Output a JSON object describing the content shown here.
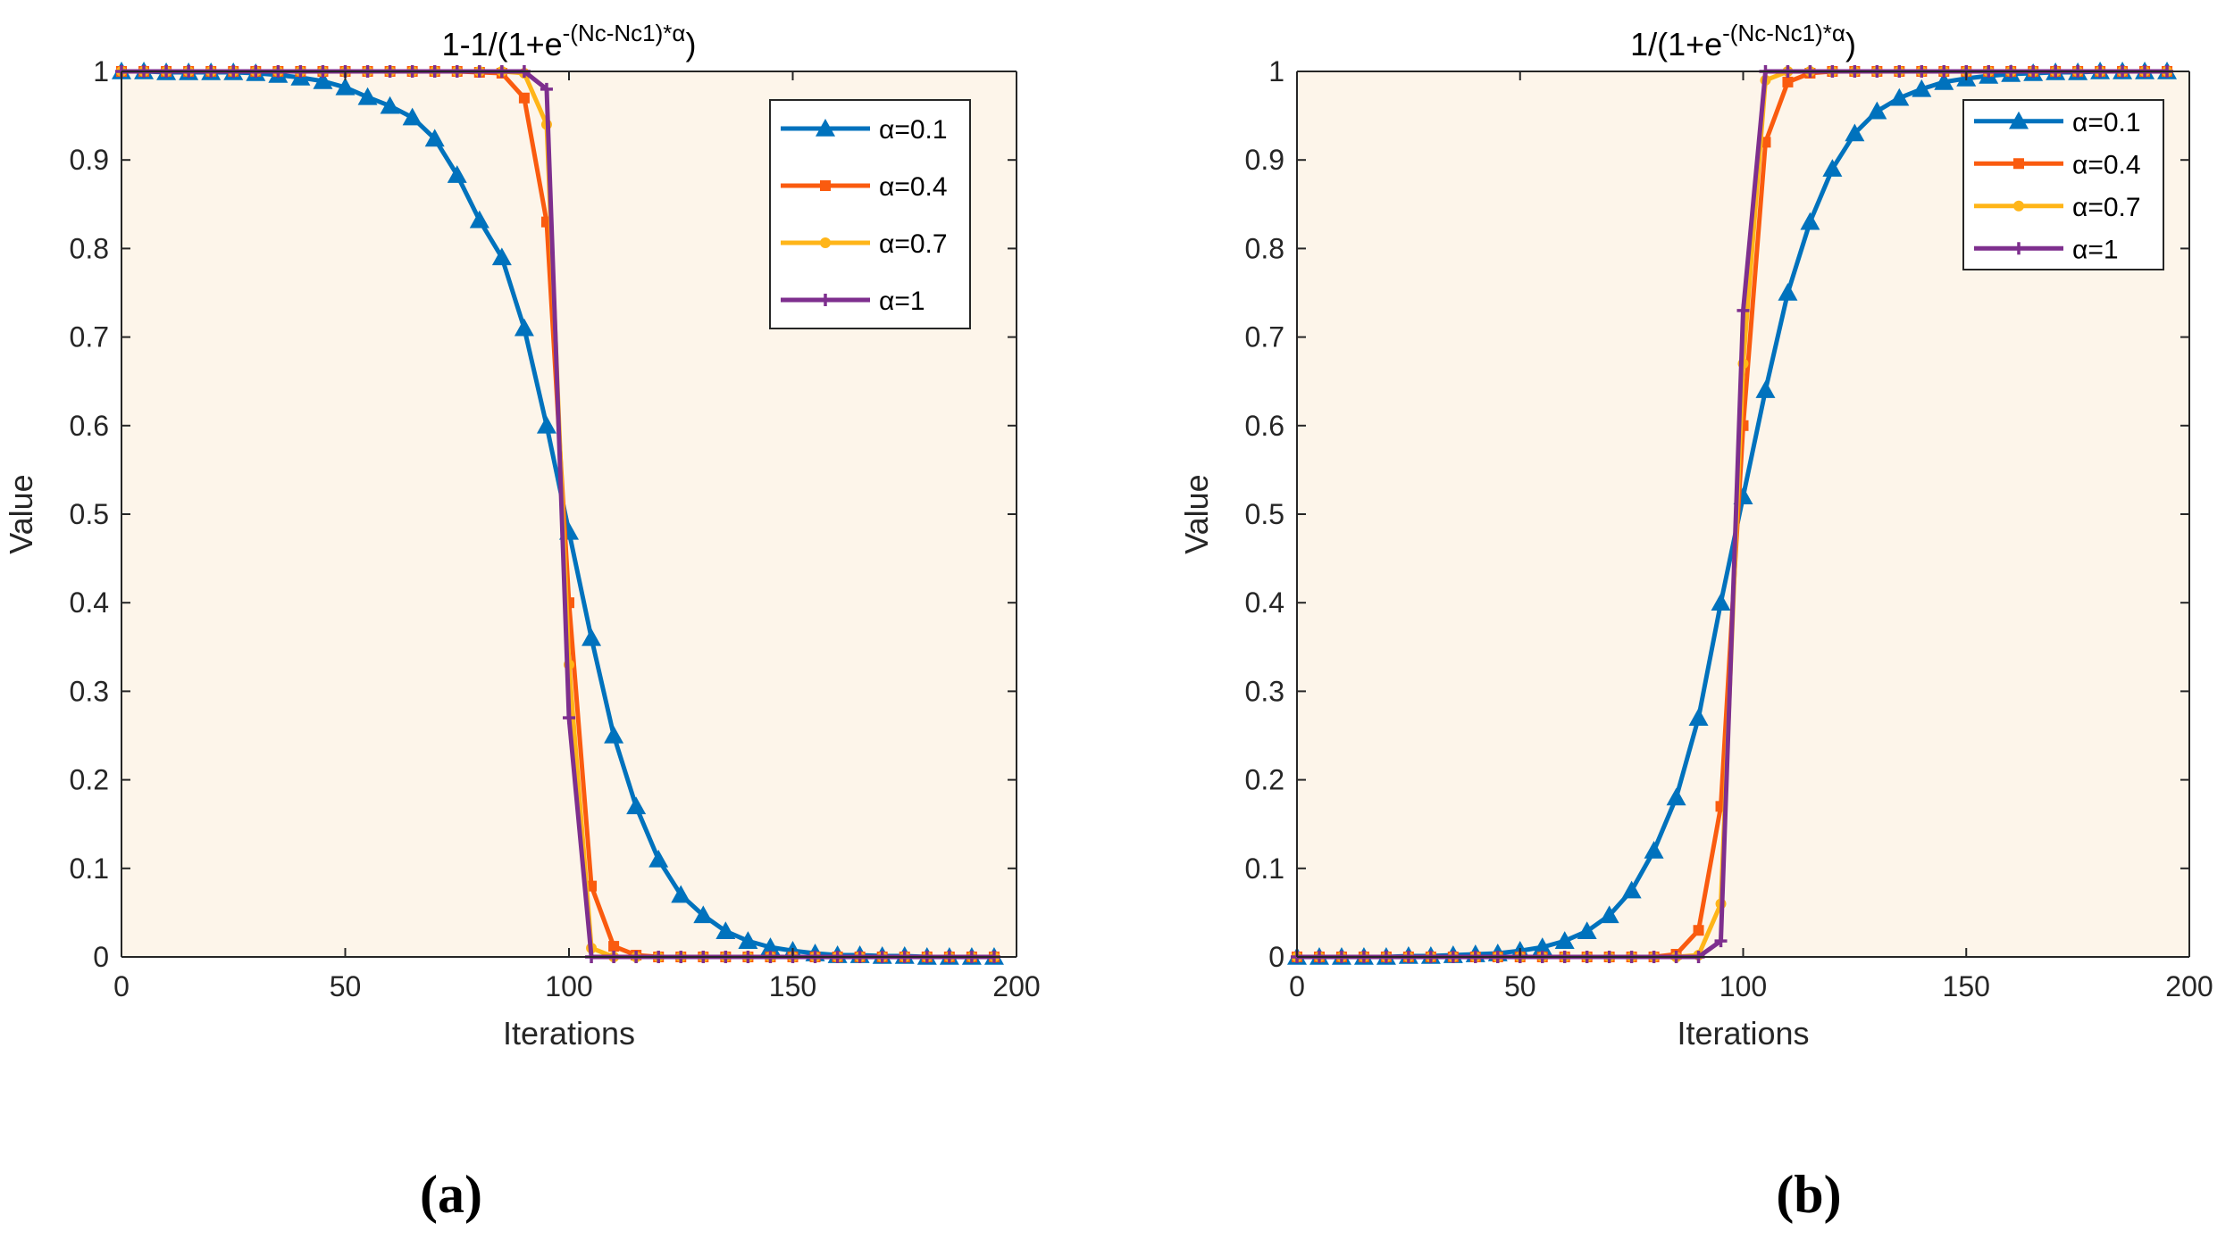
{
  "colors": {
    "plot_background": "#fdf5ea",
    "axis": "#262626",
    "series": [
      "#0072bd",
      "#fa5b0f",
      "#ffb518",
      "#7e2f8e"
    ]
  },
  "legend_labels": [
    "α=0.1",
    "α=0.4",
    "α=0.7",
    "α=1"
  ],
  "panel_labels": [
    "(a)",
    "(b)"
  ],
  "chart_data": [
    {
      "type": "line",
      "panel": "(a)",
      "title_base": "1-1/(1+e",
      "title_sup": "-(Nc-Nc1)*α",
      "title_end": ")",
      "xlabel": "Iterations",
      "ylabel": "Value",
      "xlim": [
        0,
        200
      ],
      "ylim": [
        0,
        1
      ],
      "xticks": [
        0,
        50,
        100,
        150,
        200
      ],
      "yticks": [
        0,
        0.1,
        0.2,
        0.3,
        0.4,
        0.5,
        0.6,
        0.7,
        0.8,
        0.9,
        1
      ],
      "legend_position": "top-right",
      "function": "decreasing sigmoid, center 100, sampled every 5 iterations from 0 to 195",
      "x": [
        0,
        5,
        10,
        15,
        20,
        25,
        30,
        35,
        40,
        45,
        50,
        55,
        60,
        65,
        70,
        75,
        80,
        85,
        90,
        95,
        100,
        105,
        110,
        115,
        120,
        125,
        130,
        135,
        140,
        145,
        150,
        155,
        160,
        165,
        170,
        175,
        180,
        185,
        190,
        195
      ],
      "series": [
        {
          "name": "α=0.1",
          "marker": "triangle",
          "values": [
            1.0,
            1.0,
            0.999,
            0.999,
            0.999,
            0.999,
            0.998,
            0.996,
            0.993,
            0.989,
            0.982,
            0.971,
            0.961,
            0.948,
            0.924,
            0.883,
            0.832,
            0.79,
            0.71,
            0.6,
            0.48,
            0.36,
            0.25,
            0.17,
            0.11,
            0.07,
            0.047,
            0.029,
            0.018,
            0.011,
            0.007,
            0.004,
            0.002,
            0.002,
            0.001,
            0.001,
            0.0,
            0.0,
            0.0,
            0.0
          ]
        },
        {
          "name": "α=0.4",
          "marker": "square",
          "values": [
            1.0,
            1.0,
            1.0,
            1.0,
            1.0,
            1.0,
            1.0,
            1.0,
            1.0,
            1.0,
            1.0,
            1.0,
            1.0,
            1.0,
            1.0,
            1.0,
            0.999,
            0.998,
            0.97,
            0.83,
            0.4,
            0.08,
            0.012,
            0.002,
            0.0,
            0.0,
            0.0,
            0.0,
            0.0,
            0.0,
            0.0,
            0.0,
            0.0,
            0.0,
            0.0,
            0.0,
            0.0,
            0.0,
            0.0,
            0.0
          ]
        },
        {
          "name": "α=0.7",
          "marker": "circle",
          "values": [
            1.0,
            1.0,
            1.0,
            1.0,
            1.0,
            1.0,
            1.0,
            1.0,
            1.0,
            1.0,
            1.0,
            1.0,
            1.0,
            1.0,
            1.0,
            1.0,
            1.0,
            1.0,
            0.998,
            0.94,
            0.33,
            0.01,
            0.0,
            0.0,
            0.0,
            0.0,
            0.0,
            0.0,
            0.0,
            0.0,
            0.0,
            0.0,
            0.0,
            0.0,
            0.0,
            0.0,
            0.0,
            0.0,
            0.0,
            0.0
          ]
        },
        {
          "name": "α=1",
          "marker": "plus",
          "values": [
            1.0,
            1.0,
            1.0,
            1.0,
            1.0,
            1.0,
            1.0,
            1.0,
            1.0,
            1.0,
            1.0,
            1.0,
            1.0,
            1.0,
            1.0,
            1.0,
            1.0,
            1.0,
            1.0,
            0.98,
            0.27,
            0.0,
            0.0,
            0.0,
            0.0,
            0.0,
            0.0,
            0.0,
            0.0,
            0.0,
            0.0,
            0.0,
            0.0,
            0.0,
            0.0,
            0.0,
            0.0,
            0.0,
            0.0,
            0.0
          ]
        }
      ]
    },
    {
      "type": "line",
      "panel": "(b)",
      "title_base": "1/(1+e",
      "title_sup": "-(Nc-Nc1)*α",
      "title_end": ")",
      "xlabel": "Iterations",
      "ylabel": "Value",
      "xlim": [
        0,
        200
      ],
      "ylim": [
        0,
        1
      ],
      "xticks": [
        0,
        50,
        100,
        150,
        200
      ],
      "yticks": [
        0,
        0.1,
        0.2,
        0.3,
        0.4,
        0.5,
        0.6,
        0.7,
        0.8,
        0.9,
        1
      ],
      "legend_position": "top-right",
      "function": "increasing sigmoid, center 100, sampled every 5 iterations from 0 to 195",
      "x": [
        0,
        5,
        10,
        15,
        20,
        25,
        30,
        35,
        40,
        45,
        50,
        55,
        60,
        65,
        70,
        75,
        80,
        85,
        90,
        95,
        100,
        105,
        110,
        115,
        120,
        125,
        130,
        135,
        140,
        145,
        150,
        155,
        160,
        165,
        170,
        175,
        180,
        185,
        190,
        195
      ],
      "series": [
        {
          "name": "α=0.1",
          "marker": "triangle",
          "values": [
            0.0,
            0.0,
            0.0,
            0.0,
            0.0,
            0.001,
            0.001,
            0.002,
            0.003,
            0.004,
            0.007,
            0.011,
            0.018,
            0.029,
            0.047,
            0.075,
            0.12,
            0.18,
            0.27,
            0.4,
            0.52,
            0.64,
            0.75,
            0.83,
            0.89,
            0.93,
            0.955,
            0.97,
            0.98,
            0.988,
            0.992,
            0.995,
            0.997,
            0.998,
            0.999,
            0.999,
            1.0,
            1.0,
            1.0,
            1.0
          ]
        },
        {
          "name": "α=0.4",
          "marker": "square",
          "values": [
            0.0,
            0.0,
            0.0,
            0.0,
            0.0,
            0.0,
            0.0,
            0.0,
            0.0,
            0.0,
            0.0,
            0.0,
            0.0,
            0.0,
            0.0,
            0.0,
            0.0,
            0.003,
            0.03,
            0.17,
            0.6,
            0.92,
            0.988,
            0.998,
            1.0,
            1.0,
            1.0,
            1.0,
            1.0,
            1.0,
            1.0,
            1.0,
            1.0,
            1.0,
            1.0,
            1.0,
            1.0,
            1.0,
            1.0,
            1.0
          ]
        },
        {
          "name": "α=0.7",
          "marker": "circle",
          "values": [
            0.0,
            0.0,
            0.0,
            0.0,
            0.0,
            0.0,
            0.0,
            0.0,
            0.0,
            0.0,
            0.0,
            0.0,
            0.0,
            0.0,
            0.0,
            0.0,
            0.0,
            0.0,
            0.002,
            0.06,
            0.67,
            0.99,
            1.0,
            1.0,
            1.0,
            1.0,
            1.0,
            1.0,
            1.0,
            1.0,
            1.0,
            1.0,
            1.0,
            1.0,
            1.0,
            1.0,
            1.0,
            1.0,
            1.0,
            1.0
          ]
        },
        {
          "name": "α=1",
          "marker": "plus",
          "values": [
            0.0,
            0.0,
            0.0,
            0.0,
            0.0,
            0.0,
            0.0,
            0.0,
            0.0,
            0.0,
            0.0,
            0.0,
            0.0,
            0.0,
            0.0,
            0.0,
            0.0,
            0.0,
            0.0,
            0.018,
            0.73,
            1.0,
            1.0,
            1.0,
            1.0,
            1.0,
            1.0,
            1.0,
            1.0,
            1.0,
            1.0,
            1.0,
            1.0,
            1.0,
            1.0,
            1.0,
            1.0,
            1.0,
            1.0,
            1.0
          ]
        }
      ]
    }
  ]
}
